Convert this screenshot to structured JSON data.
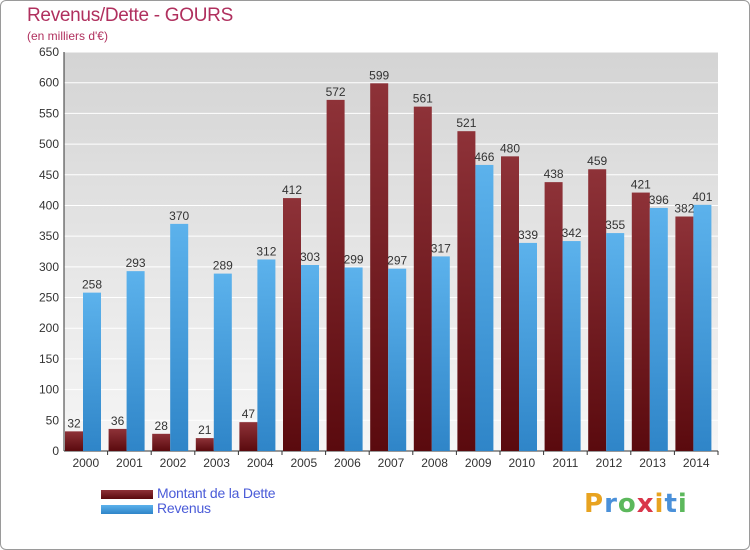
{
  "header": {
    "title": "Revenus/Dette - GOURS",
    "subtitle": "(en milliers d'€)"
  },
  "legend": [
    {
      "label": "Montant de la Dette",
      "color": "#7a1a1f"
    },
    {
      "label": "Revenus",
      "color": "#3f9fe2"
    }
  ],
  "logo": {
    "text": "Proxiti",
    "letters": [
      "P",
      "r",
      "o",
      "x",
      "i",
      "t",
      "i"
    ],
    "colors": [
      "#e8a320",
      "#4a90d9",
      "#5cb85c",
      "#d9364a",
      "#e8a320",
      "#4a90d9",
      "#5cb85c"
    ]
  },
  "colors": {
    "title": "#b0305e",
    "debt_top": "#8e3238",
    "debt_bottom": "#5a0a0e",
    "revenue_top": "#5cb2ec",
    "revenue_bottom": "#2f85c8",
    "plot_bg_top": "#d4d4d4",
    "plot_bg_bottom": "#f6f6f6",
    "grid": "#ffffff"
  },
  "chart_data": {
    "type": "bar",
    "title": "Revenus/Dette - GOURS",
    "subtitle": "(en milliers d'€)",
    "categories": [
      "2000",
      "2001",
      "2002",
      "2003",
      "2004",
      "2005",
      "2006",
      "2007",
      "2008",
      "2009",
      "2010",
      "2011",
      "2012",
      "2013",
      "2014"
    ],
    "series": [
      {
        "name": "Montant de la Dette",
        "values": [
          32,
          36,
          28,
          21,
          47,
          412,
          572,
          599,
          561,
          521,
          480,
          438,
          459,
          421,
          382
        ]
      },
      {
        "name": "Revenus",
        "values": [
          258,
          293,
          370,
          289,
          312,
          303,
          299,
          297,
          317,
          466,
          339,
          342,
          355,
          396,
          401
        ]
      }
    ],
    "ylim": [
      0,
      650
    ],
    "yticks": [
      0,
      50,
      100,
      150,
      200,
      250,
      300,
      350,
      400,
      450,
      500,
      550,
      600,
      650
    ],
    "grid": true,
    "legend_position": "bottom-left"
  }
}
